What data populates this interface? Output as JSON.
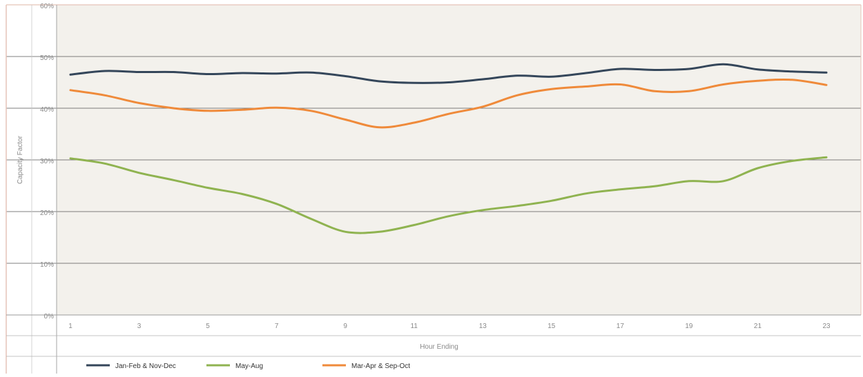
{
  "chart_data": {
    "type": "line",
    "title": "",
    "xlabel": "Hour Ending",
    "ylabel": "Capacity Factor",
    "x": [
      1,
      2,
      3,
      4,
      5,
      6,
      7,
      8,
      9,
      10,
      11,
      12,
      13,
      14,
      15,
      16,
      17,
      18,
      19,
      20,
      21,
      22,
      23
    ],
    "x_tick_labels": [
      "1",
      "3",
      "5",
      "7",
      "9",
      "11",
      "13",
      "15",
      "17",
      "19",
      "21",
      "23"
    ],
    "x_tick_values": [
      1,
      3,
      5,
      7,
      9,
      11,
      13,
      15,
      17,
      19,
      21,
      23
    ],
    "y_tick_labels": [
      "0%",
      "10%",
      "20%",
      "30%",
      "40%",
      "50%",
      "60%"
    ],
    "y_tick_values": [
      0,
      10,
      20,
      30,
      40,
      50,
      60
    ],
    "ylim": [
      0,
      60
    ],
    "xlim": [
      0.5,
      23.5
    ],
    "grid": true,
    "legend_position": "bottom",
    "series": [
      {
        "name": "Jan-Feb & Nov-Dec",
        "color": "#34465a",
        "values": [
          46.5,
          47.2,
          47.0,
          47.0,
          46.6,
          46.8,
          46.7,
          46.9,
          46.2,
          45.2,
          44.9,
          45.0,
          45.6,
          46.3,
          46.1,
          46.8,
          47.6,
          47.4,
          47.6,
          48.5,
          47.5,
          47.1,
          46.9
        ]
      },
      {
        "name": "May-Aug",
        "color": "#8fb350",
        "values": [
          30.3,
          29.3,
          27.5,
          26.1,
          24.6,
          23.4,
          21.5,
          18.6,
          16.1,
          16.1,
          17.4,
          19.1,
          20.3,
          21.1,
          22.1,
          23.5,
          24.3,
          24.9,
          25.9,
          25.9,
          28.4,
          29.8,
          30.5
        ]
      },
      {
        "name": "Mar-Apr & Sep-Oct",
        "color": "#ef8a3a",
        "values": [
          43.5,
          42.5,
          41.0,
          40.0,
          39.5,
          39.7,
          40.1,
          39.5,
          37.8,
          36.3,
          37.2,
          38.9,
          40.3,
          42.5,
          43.7,
          44.2,
          44.6,
          43.3,
          43.3,
          44.6,
          45.3,
          45.5,
          44.5
        ]
      }
    ]
  },
  "colors": {
    "plot_background": "#f3f1ec",
    "gridline": "#555555",
    "outer_border": "#e5c4b8",
    "axis_text": "#8a8a8a"
  }
}
